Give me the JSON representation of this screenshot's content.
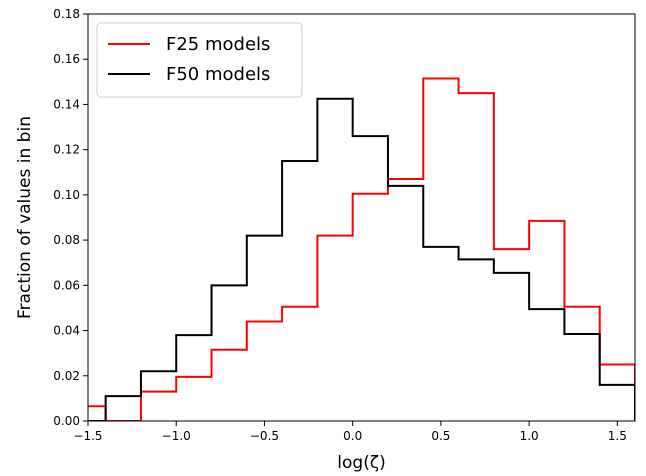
{
  "chart_data": {
    "type": "step",
    "xlabel": "log(ζ)",
    "ylabel": "Fraction of values in bin",
    "xlim": [
      -1.5,
      1.6
    ],
    "ylim": [
      0.0,
      0.18
    ],
    "xticks": [
      -1.5,
      -1.0,
      -0.5,
      0.0,
      0.5,
      1.0,
      1.5
    ],
    "xtick_labels": [
      "−1.5",
      "−1.0",
      "−0.5",
      "0.0",
      "0.5",
      "1.0",
      "1.5"
    ],
    "yticks": [
      0.0,
      0.02,
      0.04,
      0.06,
      0.08,
      0.1,
      0.12,
      0.14,
      0.16,
      0.18
    ],
    "ytick_labels": [
      "0.00",
      "0.02",
      "0.04",
      "0.06",
      "0.08",
      "0.10",
      "0.12",
      "0.14",
      "0.16",
      "0.18"
    ],
    "bin_edges": [
      -1.6,
      -1.4,
      -1.2,
      -1.0,
      -0.8,
      -0.6,
      -0.4,
      -0.2,
      0.0,
      0.2,
      0.4,
      0.6,
      0.8,
      1.0,
      1.2,
      1.4,
      1.6
    ],
    "legend_position": "top-left",
    "grid": false,
    "series": [
      {
        "name": "F25 models",
        "color": "#ff0000",
        "values": [
          0.0065,
          0.0,
          0.013,
          0.0195,
          0.0315,
          0.044,
          0.0505,
          0.082,
          0.1005,
          0.107,
          0.1515,
          0.145,
          0.076,
          0.0885,
          0.0505,
          0.025
        ]
      },
      {
        "name": "F50 models",
        "color": "#000000",
        "values": [
          0.0,
          0.011,
          0.022,
          0.038,
          0.06,
          0.082,
          0.115,
          0.1425,
          0.126,
          0.104,
          0.077,
          0.0715,
          0.0655,
          0.0495,
          0.0385,
          0.016
        ]
      }
    ]
  }
}
